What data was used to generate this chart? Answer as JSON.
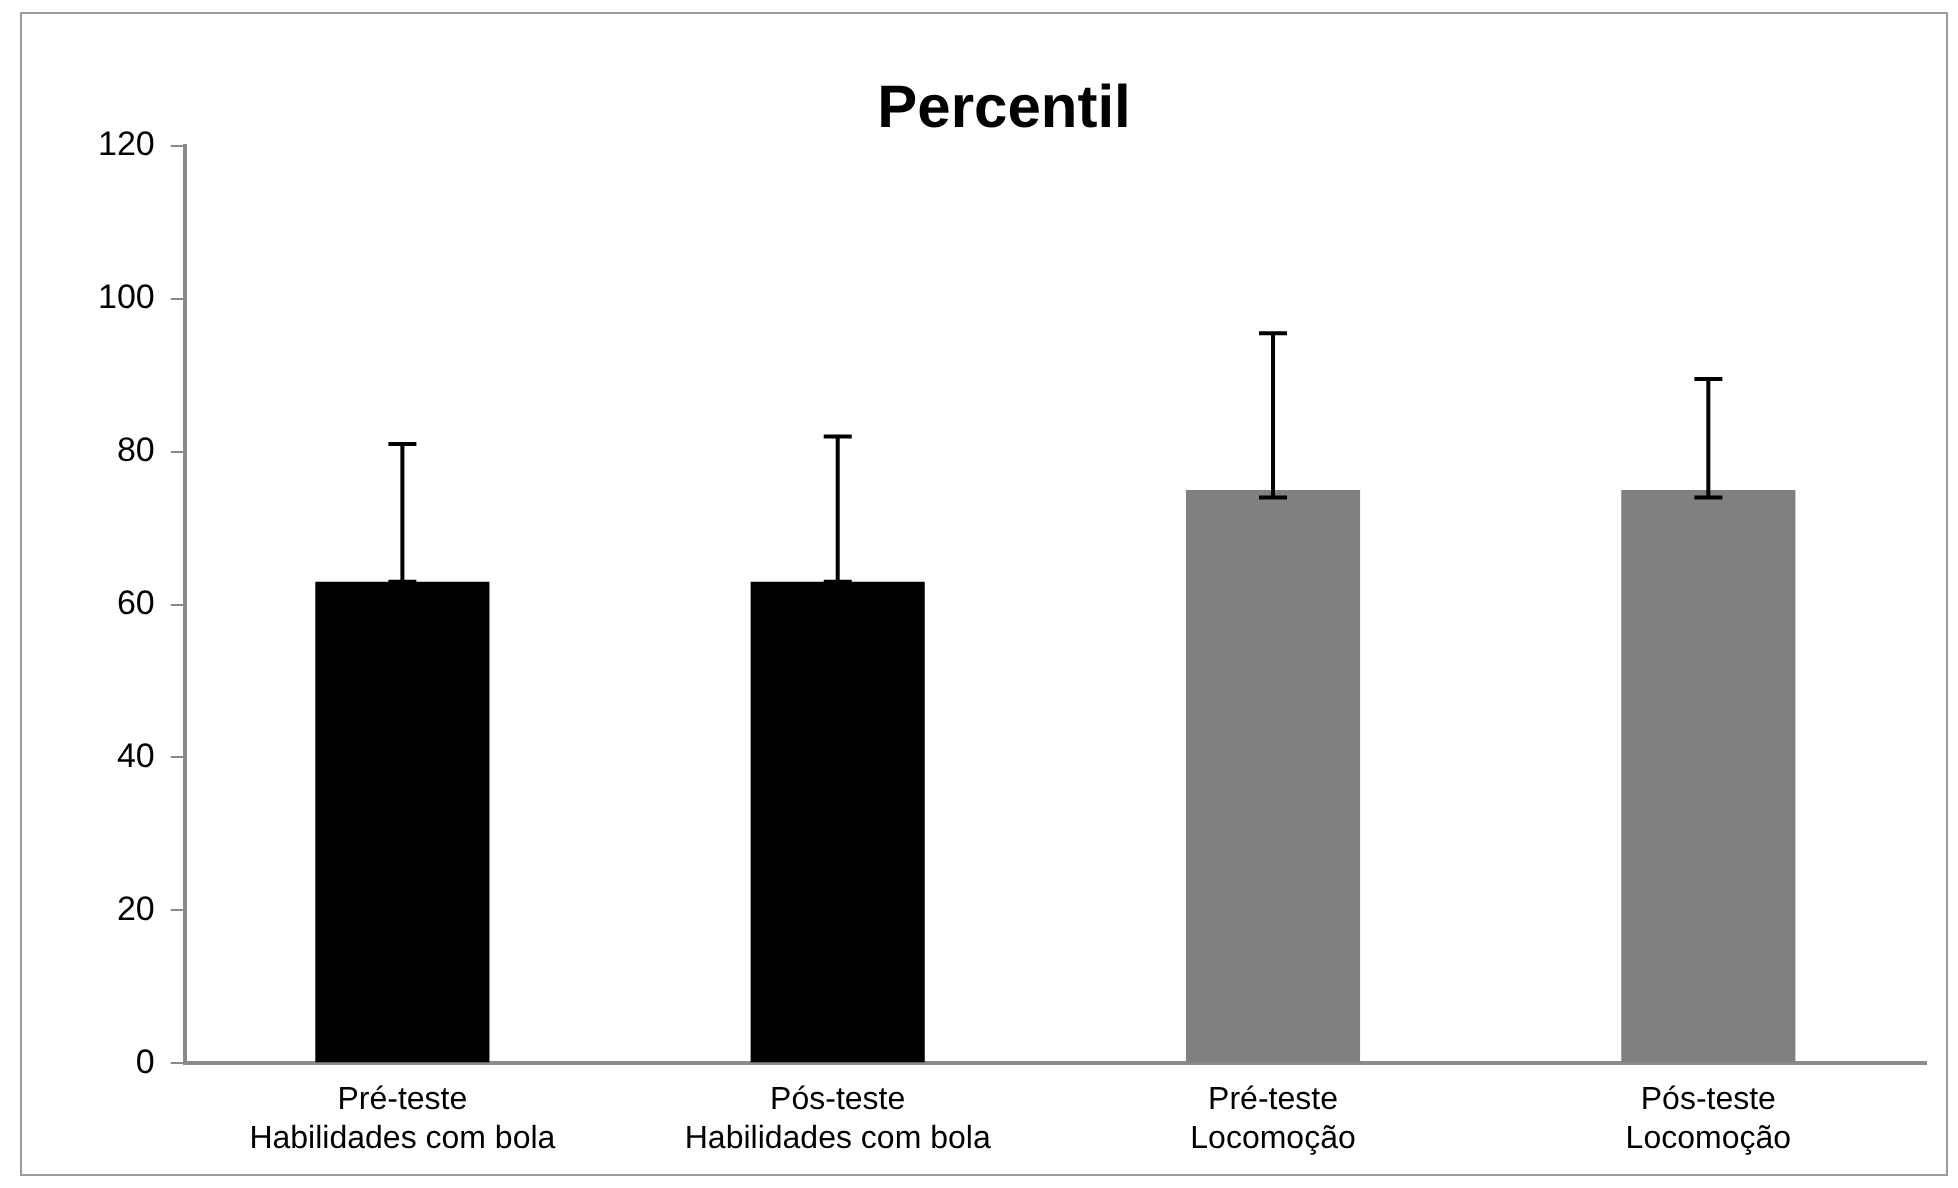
{
  "chart_data": {
    "type": "bar",
    "title": "Percentil",
    "categories": [
      "Pré-teste\nHabilidades com bola",
      "Pós-teste\nHabilidades com bola",
      "Pré-teste\nLocomoção",
      "Pós-teste\nLocomoção"
    ],
    "values": [
      63,
      63,
      75,
      75
    ],
    "colors": [
      "#000000",
      "#000000",
      "#808080",
      "#808080"
    ],
    "errors": [
      [
        63,
        81
      ],
      [
        63,
        82
      ],
      [
        74,
        95.5
      ],
      [
        74,
        89.5
      ]
    ],
    "ylim": [
      0,
      120
    ],
    "yticks": [
      0,
      20,
      40,
      60,
      80,
      100,
      120
    ],
    "grid": false,
    "legend": false
  }
}
